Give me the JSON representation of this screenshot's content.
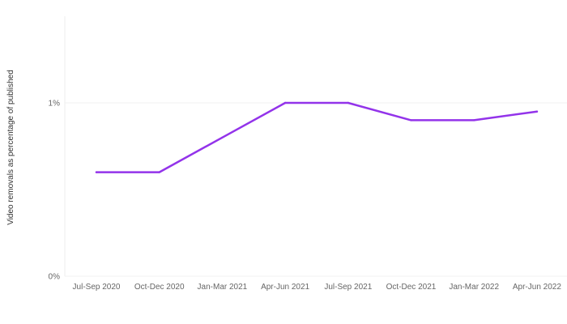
{
  "chart_data": {
    "type": "line",
    "title": "",
    "xlabel": "",
    "ylabel": "Video removals as percentage of published",
    "categories": [
      "Jul-Sep 2020",
      "Oct-Dec 2020",
      "Jan-Mar 2021",
      "Apr-Jun 2021",
      "Jul-Sep 2021",
      "Oct-Dec 2021",
      "Jan-Mar 2022",
      "Apr-Jun 2022"
    ],
    "series": [
      {
        "values": [
          0.6,
          0.6,
          0.8,
          1.0,
          1.0,
          0.9,
          0.9,
          0.95
        ],
        "color": "#9333ea"
      }
    ],
    "yticks": [
      {
        "value": 0,
        "label": "0%"
      },
      {
        "value": 1,
        "label": "1%"
      }
    ],
    "ylim": [
      0,
      1.5
    ],
    "grid": true,
    "legend": "none"
  }
}
